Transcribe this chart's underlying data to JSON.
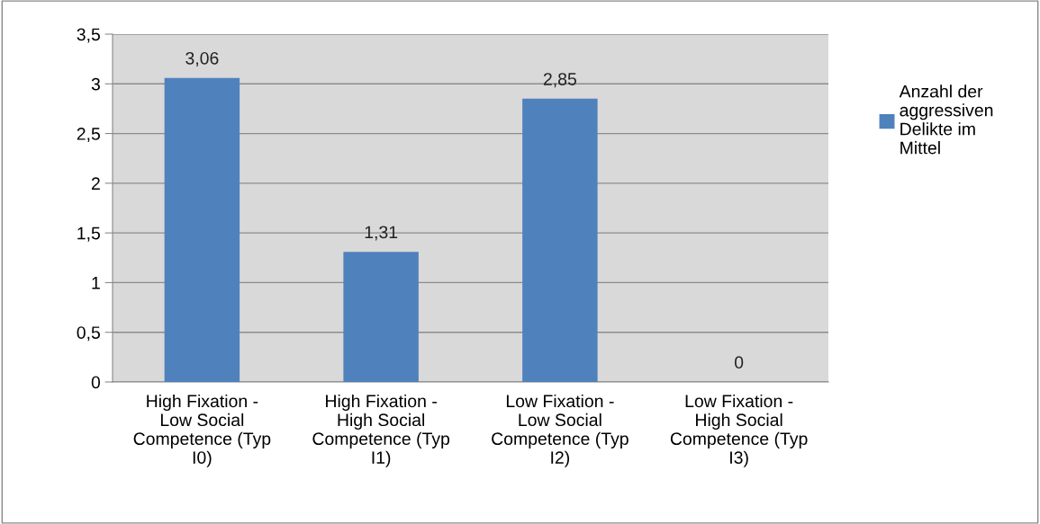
{
  "chart_data": {
    "type": "bar",
    "categories": [
      "High Fixation -\nLow Social\nCompetence (Typ\nI0)",
      "High Fixation -\nHigh Social\nCompetence (Typ\nI1)",
      "Low Fixation -\nLow Social\nCompetence (Typ\nI2)",
      "Low Fixation -\nHigh Social\nCompetence (Typ\nI3)"
    ],
    "series": [
      {
        "name": "Anzahl der\naggressiven\nDelikte im\nMittel",
        "color": "#4f81bd",
        "values": [
          3.06,
          1.31,
          2.85,
          0
        ],
        "value_labels": [
          "3,06",
          "1,31",
          "2,85",
          "0"
        ]
      }
    ],
    "ylim": [
      0,
      3.5
    ],
    "yticks": [
      0,
      {
        "value": 0.5,
        "label": "0,5"
      },
      1,
      {
        "value": 1.5,
        "label": "1,5"
      },
      2,
      {
        "value": 2.5,
        "label": "2,5"
      },
      3,
      {
        "value": 3.5,
        "label": "3,5"
      }
    ],
    "grid": "y",
    "legend": "right"
  }
}
